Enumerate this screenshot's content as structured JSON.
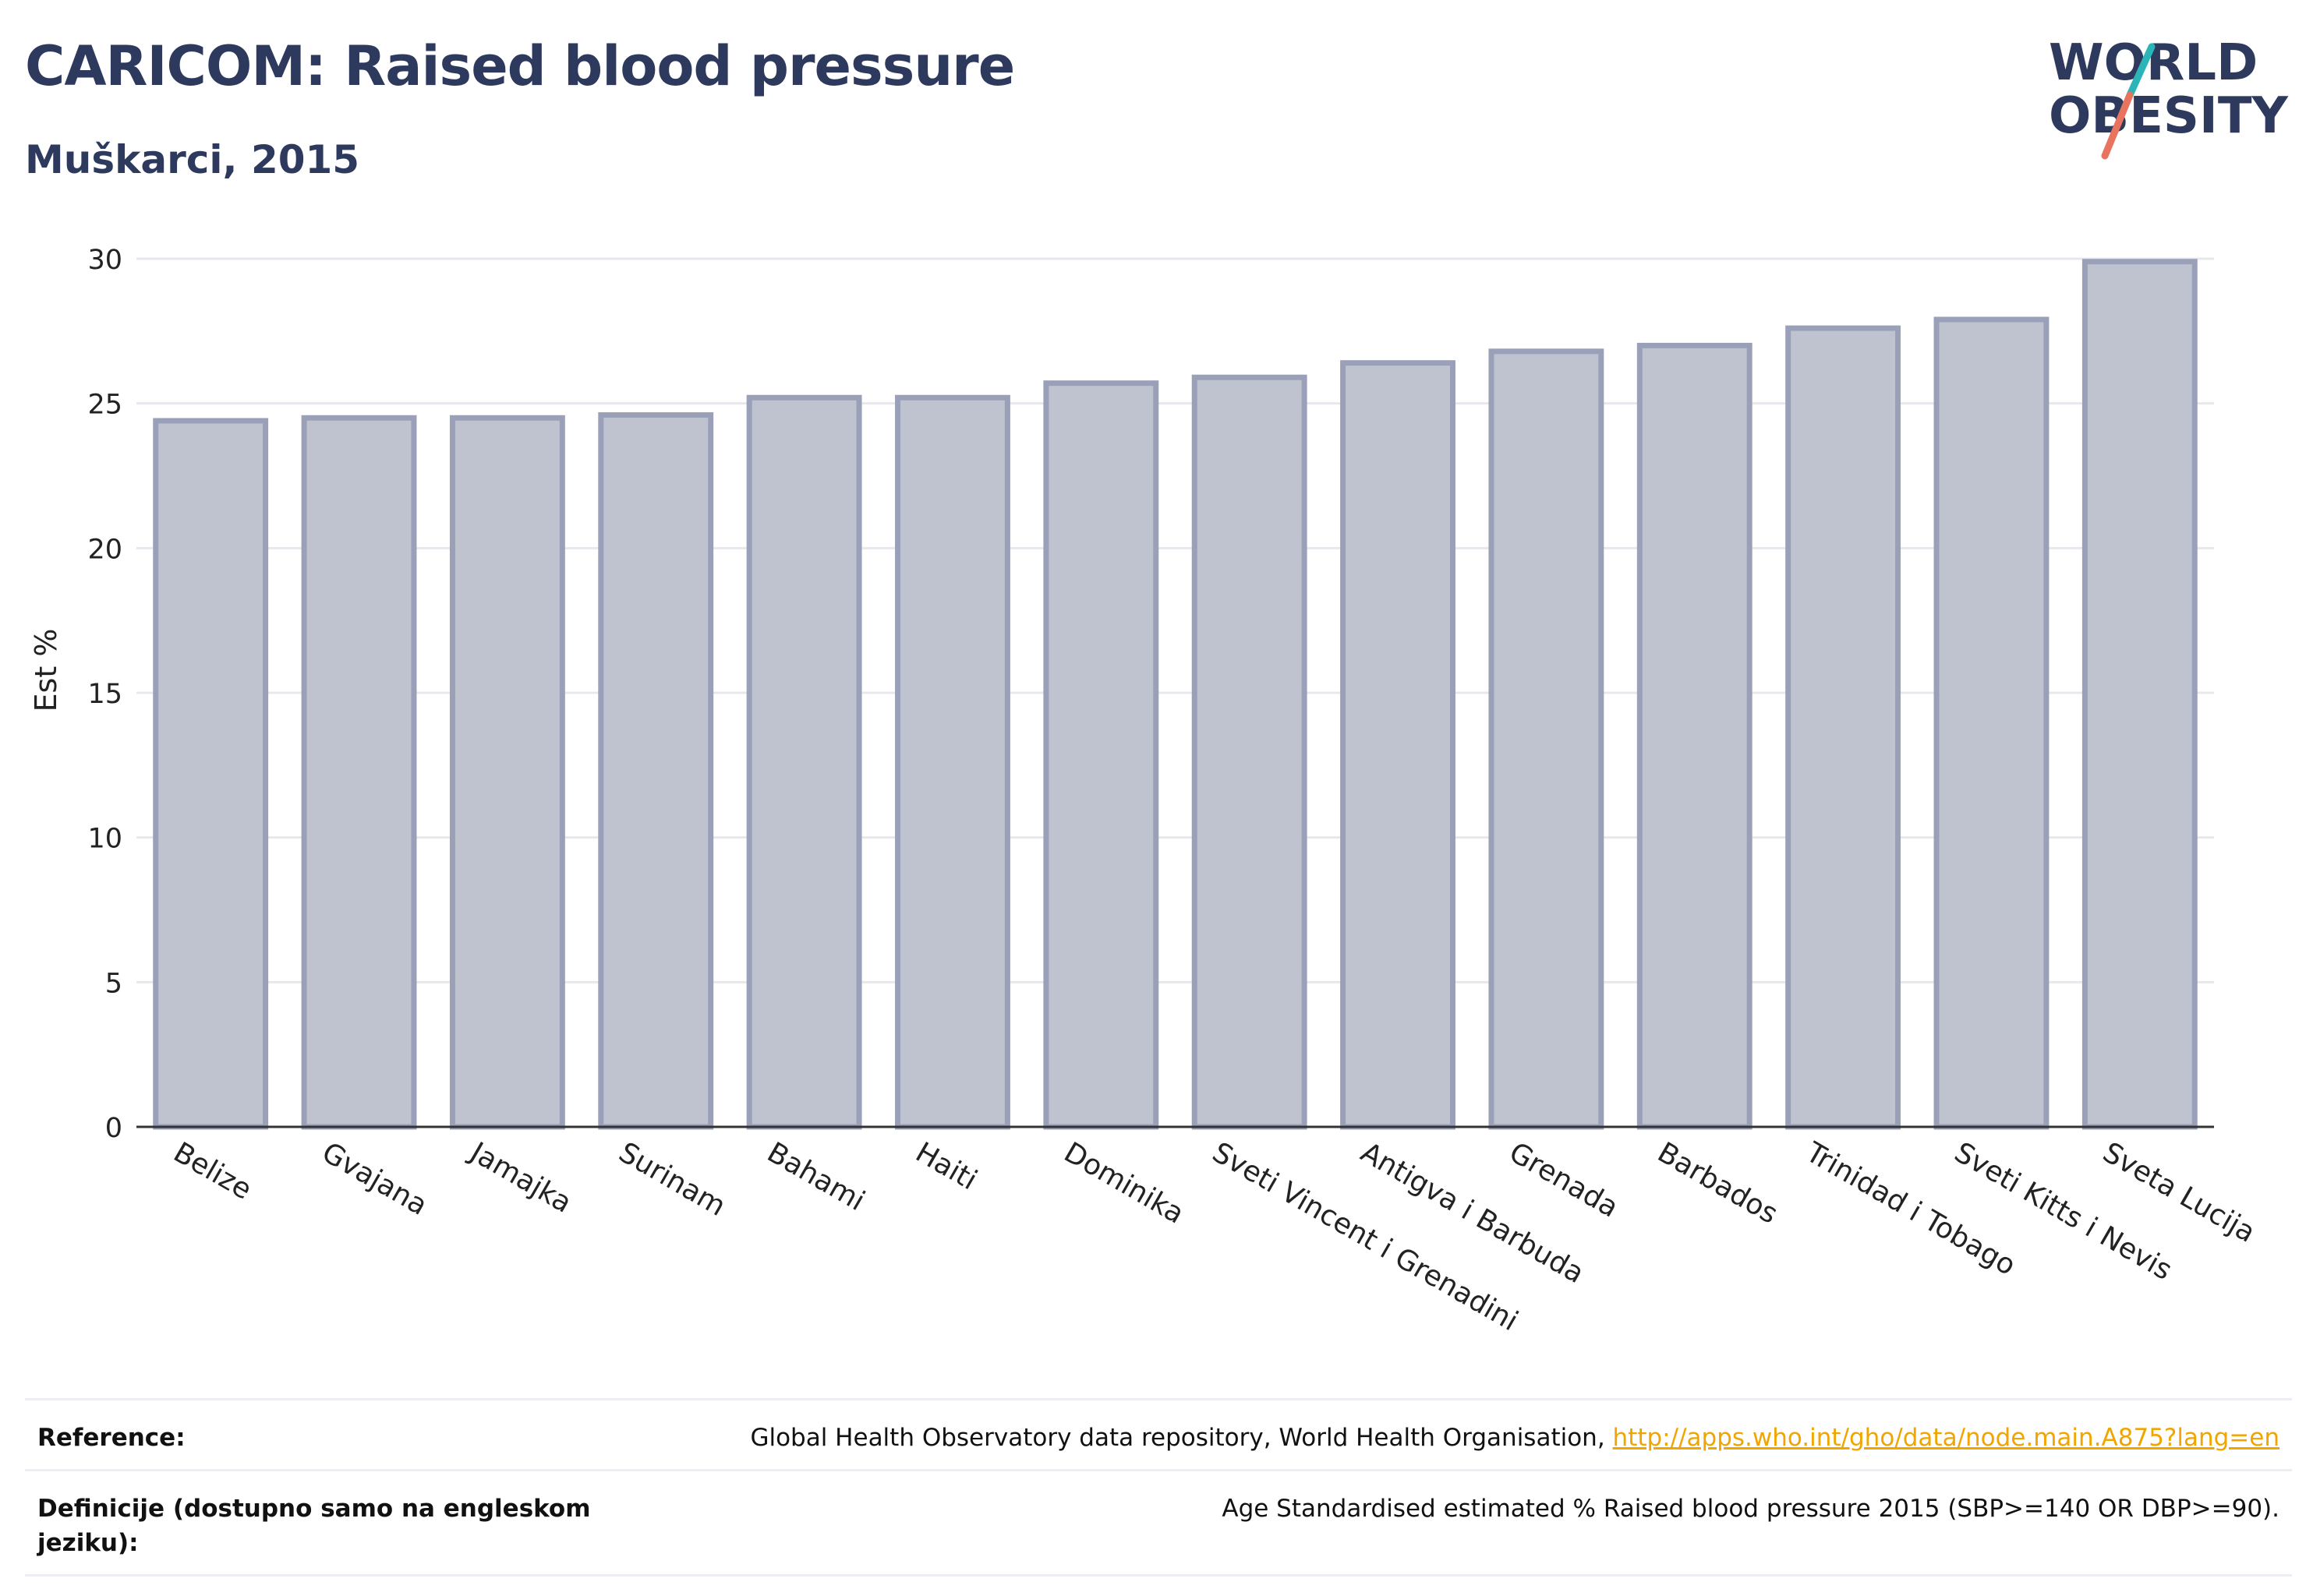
{
  "header": {
    "title": "CARICOM: Raised blood pressure",
    "subtitle": "Muškarci, 2015"
  },
  "logo": {
    "line1": "WORLD",
    "line2": "OBESITY",
    "accent_teal": "#2bb5b8",
    "accent_coral": "#e8735f",
    "text_color": "#2d3a5e"
  },
  "chart_data": {
    "type": "bar",
    "categories": [
      "Belize",
      "Gvajana",
      "Jamajka",
      "Surinam",
      "Bahami",
      "Haiti",
      "Dominika",
      "Sveti Vincent i Grenadini",
      "Antigva i Barbuda",
      "Grenada",
      "Barbados",
      "Trinidad i Tobago",
      "Sveti Kitts i Nevis",
      "Sveta Lucija"
    ],
    "values": [
      24.4,
      24.5,
      24.5,
      24.6,
      25.2,
      25.2,
      25.7,
      25.9,
      26.4,
      26.8,
      27.0,
      27.6,
      27.9,
      29.9
    ],
    "ylabel": "Est %",
    "ylim": [
      0,
      30
    ],
    "yticks": [
      0,
      5,
      10,
      15,
      20,
      25,
      30
    ],
    "grid": true,
    "bar_color": "#bfc3d0",
    "bar_border": "#9aa0b8"
  },
  "reference": {
    "rows": [
      {
        "label": "Reference:",
        "text": "Global Health Observatory data repository, World Health Organisation, ",
        "link": "http://apps.who.int/gho/data/node.main.A875?lang=en"
      },
      {
        "label": "Definicije (dostupno samo na engleskom jeziku):",
        "text": "Age Standardised estimated % Raised blood pressure 2015 (SBP>=140 OR DBP>=90).",
        "link": ""
      }
    ]
  }
}
